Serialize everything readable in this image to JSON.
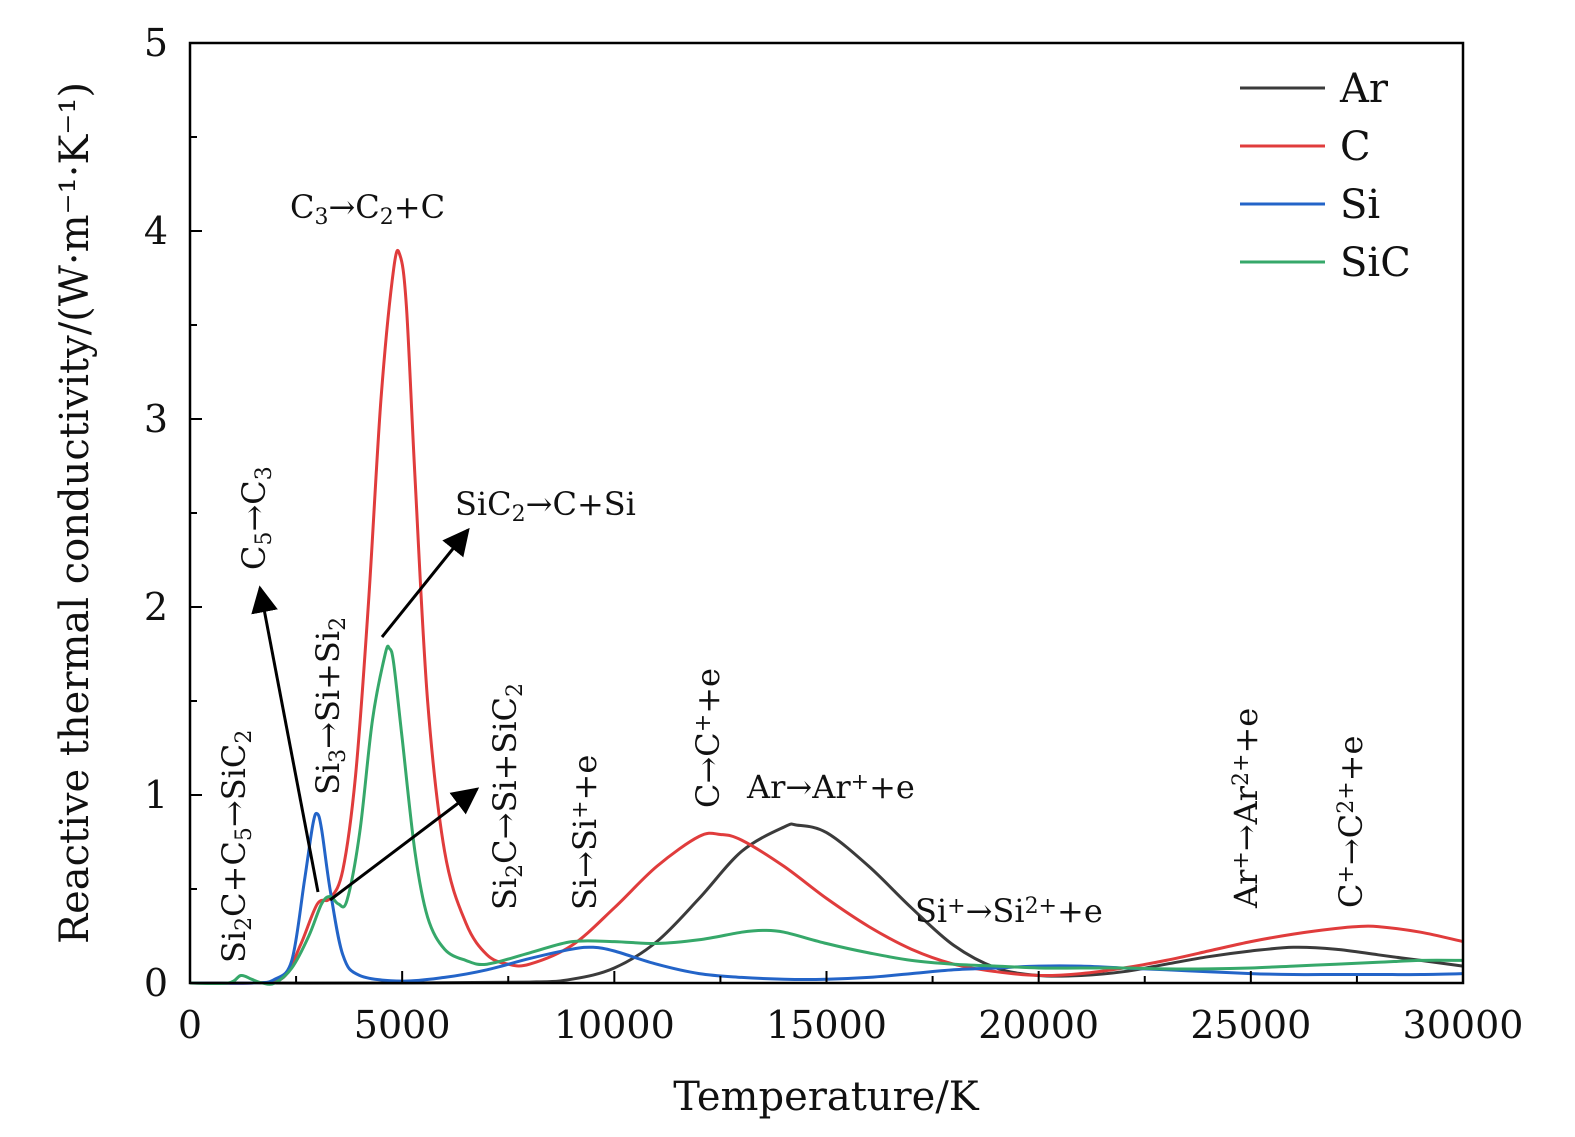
{
  "chart_data": {
    "type": "line",
    "xlabel": "Temperature/K",
    "ylabel": "Reactive thermal conductivity/(W·m⁻¹·K⁻¹)",
    "xlim": [
      0,
      30000
    ],
    "ylim": [
      0,
      5
    ],
    "x_ticks": [
      "0",
      "5000",
      "10000",
      "15000",
      "20000",
      "25000",
      "30000"
    ],
    "y_ticks": [
      "0",
      "1",
      "2",
      "3",
      "4",
      "5"
    ],
    "legend_position": "top-right",
    "grid": false,
    "series": [
      {
        "name": "Ar",
        "color": "#3b3b3b",
        "x": [
          0,
          5000,
          8000,
          9000,
          10000,
          11000,
          12000,
          13000,
          14000,
          14300,
          15000,
          16000,
          17000,
          18000,
          19000,
          20000,
          21000,
          22000,
          23000,
          24000,
          25000,
          26000,
          27000,
          28000,
          29000,
          30000
        ],
        "y": [
          0,
          0,
          0.005,
          0.02,
          0.08,
          0.22,
          0.45,
          0.7,
          0.83,
          0.84,
          0.8,
          0.62,
          0.4,
          0.2,
          0.08,
          0.04,
          0.04,
          0.06,
          0.1,
          0.14,
          0.17,
          0.19,
          0.18,
          0.15,
          0.12,
          0.09
        ]
      },
      {
        "name": "C",
        "color": "#e03c3c",
        "x": [
          0,
          1500,
          2200,
          2600,
          3000,
          3300,
          3600,
          3900,
          4200,
          4500,
          4800,
          4950,
          5100,
          5300,
          5600,
          6000,
          6500,
          7000,
          7500,
          8000,
          9000,
          10000,
          11000,
          12000,
          12500,
          13000,
          14000,
          15000,
          16000,
          17000,
          18000,
          19000,
          20000,
          21000,
          22000,
          23000,
          24000,
          25000,
          26000,
          27000,
          27500,
          28000,
          29000,
          30000
        ],
        "y": [
          0,
          0,
          0.03,
          0.2,
          0.42,
          0.45,
          0.6,
          1.1,
          2.0,
          3.1,
          3.8,
          3.87,
          3.6,
          2.7,
          1.5,
          0.7,
          0.32,
          0.15,
          0.1,
          0.1,
          0.2,
          0.4,
          0.62,
          0.78,
          0.79,
          0.76,
          0.62,
          0.45,
          0.3,
          0.18,
          0.1,
          0.06,
          0.04,
          0.05,
          0.08,
          0.12,
          0.17,
          0.22,
          0.26,
          0.29,
          0.3,
          0.3,
          0.27,
          0.22
        ]
      },
      {
        "name": "Si",
        "color": "#2364c8",
        "x": [
          0,
          1500,
          2000,
          2400,
          2700,
          2900,
          3000,
          3100,
          3300,
          3600,
          4000,
          5000,
          6000,
          7000,
          8000,
          9000,
          9500,
          10000,
          11000,
          12000,
          13000,
          14000,
          15000,
          16000,
          17000,
          18000,
          19000,
          20000,
          21000,
          22000,
          23000,
          24000,
          25000,
          26000,
          27000,
          28000,
          29000,
          30000
        ],
        "y": [
          0,
          0,
          0.02,
          0.12,
          0.55,
          0.85,
          0.9,
          0.82,
          0.5,
          0.15,
          0.04,
          0.01,
          0.03,
          0.07,
          0.13,
          0.18,
          0.19,
          0.17,
          0.1,
          0.05,
          0.03,
          0.02,
          0.02,
          0.03,
          0.05,
          0.07,
          0.08,
          0.09,
          0.09,
          0.08,
          0.07,
          0.06,
          0.05,
          0.045,
          0.045,
          0.045,
          0.045,
          0.05
        ]
      },
      {
        "name": "SiC",
        "color": "#36a86a",
        "x": [
          0,
          900,
          1200,
          1450,
          1700,
          2000,
          2400,
          2800,
          3100,
          3300,
          3500,
          3700,
          4000,
          4300,
          4600,
          4700,
          4800,
          5000,
          5300,
          5600,
          6000,
          6500,
          7000,
          8000,
          9000,
          10000,
          11000,
          12000,
          13000,
          13500,
          14000,
          15000,
          16000,
          17000,
          18000,
          19000,
          20000,
          21000,
          22000,
          23000,
          24000,
          25000,
          26000,
          27000,
          28000,
          29000,
          30000
        ],
        "y": [
          0,
          0,
          0.04,
          0.02,
          0,
          0,
          0.08,
          0.25,
          0.42,
          0.46,
          0.42,
          0.44,
          0.8,
          1.4,
          1.75,
          1.78,
          1.7,
          1.3,
          0.7,
          0.35,
          0.18,
          0.12,
          0.1,
          0.16,
          0.22,
          0.22,
          0.21,
          0.23,
          0.27,
          0.28,
          0.27,
          0.21,
          0.16,
          0.12,
          0.1,
          0.09,
          0.08,
          0.08,
          0.08,
          0.075,
          0.075,
          0.08,
          0.09,
          0.1,
          0.11,
          0.12,
          0.12
        ]
      }
    ],
    "annotations": [
      {
        "id": "c3",
        "parts": [
          [
            "C",
            ""
          ],
          [
            "3",
            "sub"
          ],
          [
            "→C",
            ""
          ],
          [
            "2",
            "sub"
          ],
          [
            "+C",
            ""
          ]
        ]
      },
      {
        "id": "sic2",
        "parts": [
          [
            "SiC",
            ""
          ],
          [
            "2",
            "sub"
          ],
          [
            "→C+Si",
            ""
          ]
        ]
      },
      {
        "id": "c5",
        "parts": [
          [
            "C",
            ""
          ],
          [
            "5",
            "sub"
          ],
          [
            "→C",
            ""
          ],
          [
            "3",
            "sub"
          ]
        ]
      },
      {
        "id": "si3",
        "parts": [
          [
            "Si",
            ""
          ],
          [
            "3",
            "sub"
          ],
          [
            "→Si+Si",
            ""
          ],
          [
            "2",
            "sub"
          ]
        ]
      },
      {
        "id": "si2c-c5",
        "parts": [
          [
            "Si",
            ""
          ],
          [
            "2",
            "sub"
          ],
          [
            "C+C",
            ""
          ],
          [
            "5",
            "sub"
          ],
          [
            "→SiC",
            ""
          ],
          [
            "2",
            "sub"
          ]
        ]
      },
      {
        "id": "si2c",
        "parts": [
          [
            "Si",
            ""
          ],
          [
            "2",
            "sub"
          ],
          [
            "C→Si+SiC",
            ""
          ],
          [
            "2",
            "sub"
          ]
        ]
      },
      {
        "id": "si-ion",
        "parts": [
          [
            "Si→Si",
            ""
          ],
          [
            "+",
            "sup"
          ],
          [
            "+e",
            ""
          ]
        ]
      },
      {
        "id": "c-ion",
        "parts": [
          [
            "C→C",
            ""
          ],
          [
            "+",
            "sup"
          ],
          [
            "+e",
            ""
          ]
        ]
      },
      {
        "id": "ar-ion",
        "parts": [
          [
            "Ar→Ar",
            ""
          ],
          [
            "+",
            "sup"
          ],
          [
            "+e",
            ""
          ]
        ]
      },
      {
        "id": "si-ion2",
        "parts": [
          [
            "Si",
            ""
          ],
          [
            "+",
            "sup"
          ],
          [
            "→Si",
            ""
          ],
          [
            "2+",
            "sup"
          ],
          [
            "+e",
            ""
          ]
        ]
      },
      {
        "id": "ar-ion2",
        "parts": [
          [
            "Ar",
            ""
          ],
          [
            "+",
            "sup"
          ],
          [
            "→Ar",
            ""
          ],
          [
            "2+",
            "sup"
          ],
          [
            "+e",
            ""
          ]
        ]
      },
      {
        "id": "c-ion2",
        "parts": [
          [
            "C",
            ""
          ],
          [
            "+",
            "sup"
          ],
          [
            "→C",
            ""
          ],
          [
            "2+",
            "sup"
          ],
          [
            "+e",
            ""
          ]
        ]
      }
    ]
  }
}
